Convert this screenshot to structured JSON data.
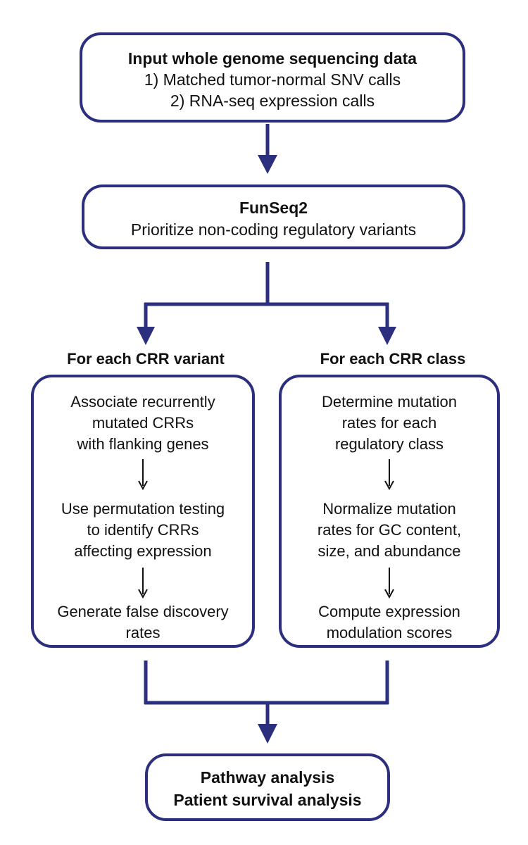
{
  "input_box": {
    "title": "Input whole genome sequencing data",
    "line1": "1) Matched tumor-normal SNV calls",
    "line2": "2) RNA-seq expression calls"
  },
  "funseq_box": {
    "title": "FunSeq2",
    "subtitle": "Prioritize non-coding regulatory variants"
  },
  "left_column": {
    "heading": "For each CRR variant",
    "steps": [
      "Associate recurrently mutated CRRs with flanking genes",
      "Use permutation testing to identify CRRs affecting expression",
      "Generate false discovery rates"
    ],
    "step_lines": [
      [
        "Associate recurrently",
        "mutated CRRs",
        "with flanking genes"
      ],
      [
        "Use permutation testing",
        "to identify CRRs",
        "affecting expression"
      ],
      [
        "Generate false discovery",
        "rates"
      ]
    ]
  },
  "right_column": {
    "heading": "For each CRR class",
    "steps": [
      "Determine mutation rates for each regulatory class",
      "Normalize mutation rates for GC content, size, and abundance",
      "Compute expression modulation scores"
    ],
    "step_lines": [
      [
        "Determine mutation",
        "rates for each",
        "regulatory class"
      ],
      [
        "Normalize mutation",
        "rates for GC content,",
        "size, and abundance"
      ],
      [
        "Compute expression",
        "modulation scores"
      ]
    ]
  },
  "final_box": {
    "line1": "Pathway analysis",
    "line2": "Patient survival analysis"
  },
  "colors": {
    "connector": "#2b2f7e",
    "text": "#111111",
    "step_arrow": "#111111"
  }
}
